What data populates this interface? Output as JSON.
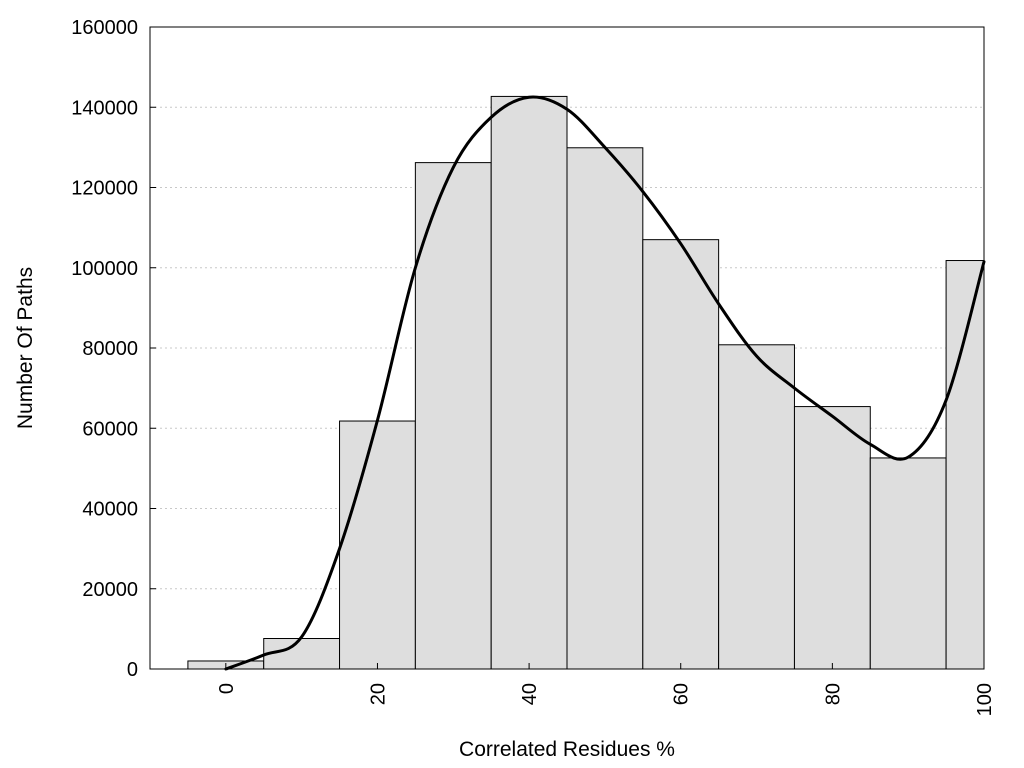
{
  "chart_data": {
    "type": "bar",
    "title": "",
    "xlabel": "Correlated Residues %",
    "ylabel": "Number Of Paths",
    "xlim": [
      -10,
      100
    ],
    "ylim": [
      0,
      160000
    ],
    "grid": true,
    "x_ticks": [
      "0",
      "20",
      "40",
      "60",
      "80",
      "100"
    ],
    "y_ticks": [
      "0",
      "20000",
      "40000",
      "60000",
      "80000",
      "100000",
      "120000",
      "140000",
      "160000"
    ],
    "bins": [
      {
        "x": 0,
        "value": 2000
      },
      {
        "x": 10,
        "value": 7600
      },
      {
        "x": 20,
        "value": 61800
      },
      {
        "x": 30,
        "value": 126200
      },
      {
        "x": 40,
        "value": 142700
      },
      {
        "x": 50,
        "value": 129900
      },
      {
        "x": 60,
        "value": 107000
      },
      {
        "x": 70,
        "value": 80800
      },
      {
        "x": 80,
        "value": 65400
      },
      {
        "x": 90,
        "value": 52600
      },
      {
        "x": 100,
        "value": 101800
      }
    ],
    "bin_width": 10,
    "smooth_curve": {
      "x": [
        0,
        5,
        10,
        15,
        20,
        25,
        30,
        35,
        40,
        45,
        50,
        55,
        60,
        65,
        70,
        75,
        80,
        85,
        90,
        95,
        100
      ],
      "y": [
        0,
        3500,
        8000,
        30000,
        62000,
        100000,
        125000,
        137500,
        142500,
        139500,
        130000,
        119000,
        106000,
        91000,
        78000,
        70000,
        63000,
        56000,
        52800,
        67000,
        101500
      ]
    }
  }
}
